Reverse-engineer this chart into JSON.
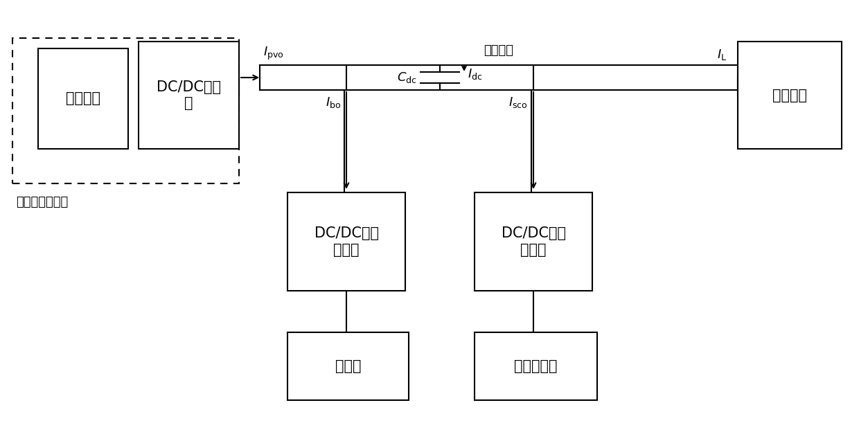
{
  "bg_color": "#ffffff",
  "line_color": "#000000",
  "title": "直流母线",
  "pv_label": "光伏阵列",
  "dcdc1_label": "DC/DC变换\n器",
  "load_label": "直流负荷",
  "dcdc_bat_label": "DC/DC双向\n变换器",
  "dcdc_sc_label": "DC/DC双向\n变换器",
  "bat_label": "锂电池",
  "sc_label": "超级电容器",
  "dist_label": "分布式发电单元",
  "I_pvo": "$I_\\mathrm{pvo}$",
  "I_L": "$I_\\mathrm{L}$",
  "I_bo": "$I_\\mathrm{bo}$",
  "I_sco": "$I_\\mathrm{sco}$",
  "C_dc": "$C_\\mathrm{dc}$",
  "I_dc": "$I_\\mathrm{dc}$"
}
